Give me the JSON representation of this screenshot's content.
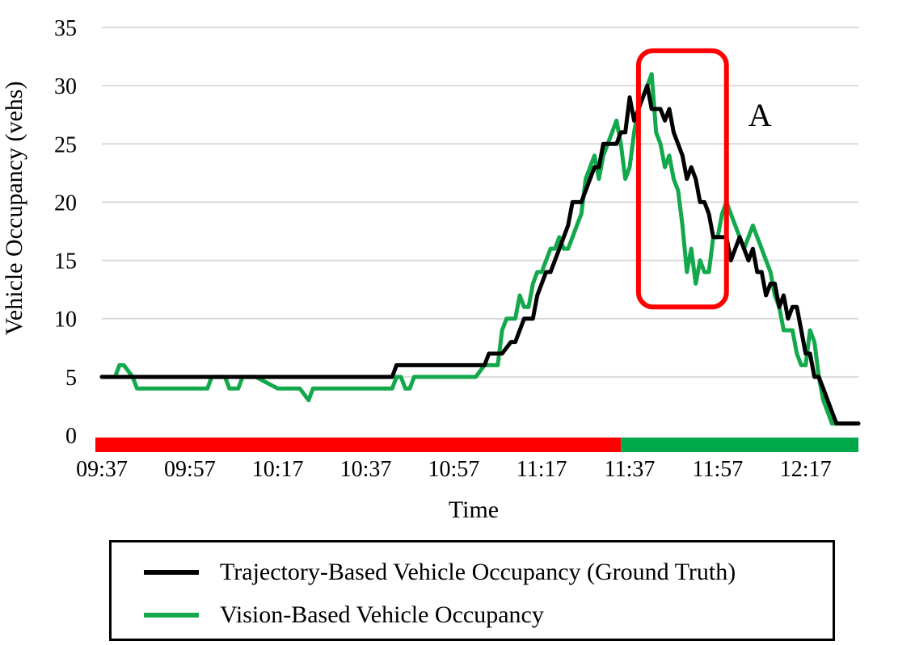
{
  "chart_data": {
    "type": "line",
    "xlabel": "Time",
    "ylabel": "Vehicle Occupancy (vehs)",
    "ylim": [
      0,
      35
    ],
    "yticks": [
      "0",
      "5",
      "10",
      "15",
      "20",
      "25",
      "30",
      "35"
    ],
    "xlim_minutes": [
      0,
      172
    ],
    "xticks": [
      {
        "label": "09:37",
        "minute": 0
      },
      {
        "label": "09:57",
        "minute": 20
      },
      {
        "label": "10:17",
        "minute": 40
      },
      {
        "label": "10:37",
        "minute": 60
      },
      {
        "label": "10:57",
        "minute": 80
      },
      {
        "label": "11:17",
        "minute": 100
      },
      {
        "label": "11:37",
        "minute": 120
      },
      {
        "label": "11:57",
        "minute": 140
      },
      {
        "label": "12:17",
        "minute": 160
      }
    ],
    "grid": true,
    "legend_position": "bottom",
    "series": [
      {
        "name": "Trajectory-Based Vehicle Occupancy (Ground Truth)",
        "color": "#000000",
        "x": [
          0,
          5,
          10,
          20,
          30,
          40,
          50,
          60,
          66,
          67,
          70,
          80,
          87,
          88,
          89,
          91,
          93,
          94,
          95,
          96,
          97,
          98,
          99,
          100,
          101,
          102,
          103,
          104,
          105,
          106,
          107,
          108,
          109,
          110,
          111,
          112,
          113,
          114,
          115,
          116,
          117,
          118,
          119,
          120,
          121,
          122,
          123,
          124,
          125,
          126,
          127,
          128,
          129,
          130,
          131,
          132,
          133,
          134,
          135,
          136,
          137,
          138,
          139,
          140,
          141,
          142,
          143,
          144,
          145,
          146,
          147,
          148,
          149,
          150,
          151,
          152,
          153,
          154,
          155,
          156,
          157,
          158,
          159,
          160,
          161,
          162,
          163,
          164,
          165,
          166,
          167,
          168,
          169,
          170,
          171,
          172
        ],
        "y": [
          5,
          5,
          5,
          5,
          5,
          5,
          5,
          5,
          5,
          6,
          6,
          6,
          6,
          7,
          7,
          7,
          8,
          8,
          9,
          10,
          10,
          10,
          12,
          13,
          14,
          14,
          15,
          16,
          17,
          18,
          20,
          20,
          20,
          21,
          22,
          23,
          23,
          25,
          25,
          25,
          25,
          26,
          26,
          29,
          27,
          28,
          29,
          30,
          28,
          28,
          28,
          27,
          28,
          26,
          25,
          24,
          22,
          23,
          22,
          20,
          20,
          19,
          17,
          17,
          17,
          17,
          15,
          16,
          17,
          16,
          15,
          16,
          14,
          14,
          12,
          13,
          13,
          11,
          12,
          10,
          11,
          11,
          9,
          7,
          7,
          5,
          5,
          4,
          3,
          2,
          1,
          1,
          1,
          1,
          1,
          1
        ]
      },
      {
        "name": "Vision-Based Vehicle Occupancy",
        "color": "#12a84b",
        "x": [
          0,
          3,
          4,
          5,
          7,
          8,
          10,
          15,
          20,
          24,
          25,
          28,
          29,
          31,
          32,
          35,
          40,
          45,
          47,
          48,
          50,
          55,
          60,
          66,
          67,
          68,
          69,
          70,
          71,
          72,
          75,
          80,
          84,
          85,
          87,
          88,
          89,
          90,
          91,
          92,
          93,
          94,
          95,
          96,
          97,
          98,
          99,
          100,
          101,
          102,
          103,
          104,
          105,
          106,
          107,
          108,
          109,
          110,
          111,
          112,
          113,
          114,
          115,
          116,
          117,
          118,
          119,
          120,
          121,
          122,
          123,
          124,
          125,
          126,
          127,
          128,
          129,
          130,
          131,
          132,
          133,
          134,
          135,
          136,
          137,
          138,
          139,
          140,
          141,
          142,
          143,
          144,
          145,
          146,
          147,
          148,
          149,
          150,
          151,
          152,
          153,
          154,
          155,
          156,
          157,
          158,
          159,
          160,
          161,
          162,
          163,
          164,
          165,
          166,
          167,
          168,
          169,
          170,
          171,
          172
        ],
        "y": [
          5,
          5,
          6,
          6,
          5,
          4,
          4,
          4,
          4,
          4,
          5,
          5,
          4,
          4,
          5,
          5,
          4,
          4,
          3,
          4,
          4,
          4,
          4,
          4,
          5,
          5,
          4,
          4,
          5,
          5,
          5,
          5,
          5,
          5,
          6,
          6,
          6,
          6,
          9,
          10,
          10,
          10,
          12,
          11,
          11,
          13,
          14,
          14,
          15,
          16,
          16,
          17,
          16,
          16,
          17,
          18,
          19,
          22,
          23,
          24,
          22,
          24,
          25,
          26,
          27,
          25,
          22,
          23,
          26,
          28,
          29,
          30,
          31,
          26,
          25,
          23,
          24,
          22,
          21,
          18,
          14,
          16,
          13,
          15,
          14,
          14,
          17,
          17,
          19,
          20,
          19,
          18,
          17,
          16,
          17,
          18,
          17,
          16,
          15,
          14,
          12,
          11,
          9,
          9,
          9,
          7,
          6,
          6,
          9,
          8,
          5,
          3,
          2,
          1,
          1,
          1,
          1,
          1,
          1,
          1
        ]
      }
    ],
    "phase_bar": [
      {
        "from_minute": 0,
        "to_minute": 118,
        "color": "#ff0000"
      },
      {
        "from_minute": 118,
        "to_minute": 172,
        "color": "#00a84a"
      }
    ],
    "highlight": {
      "label": "A",
      "from_minute": 122,
      "to_minute": 142,
      "from_y": 11,
      "to_y": 33,
      "color": "#ff0000"
    }
  }
}
